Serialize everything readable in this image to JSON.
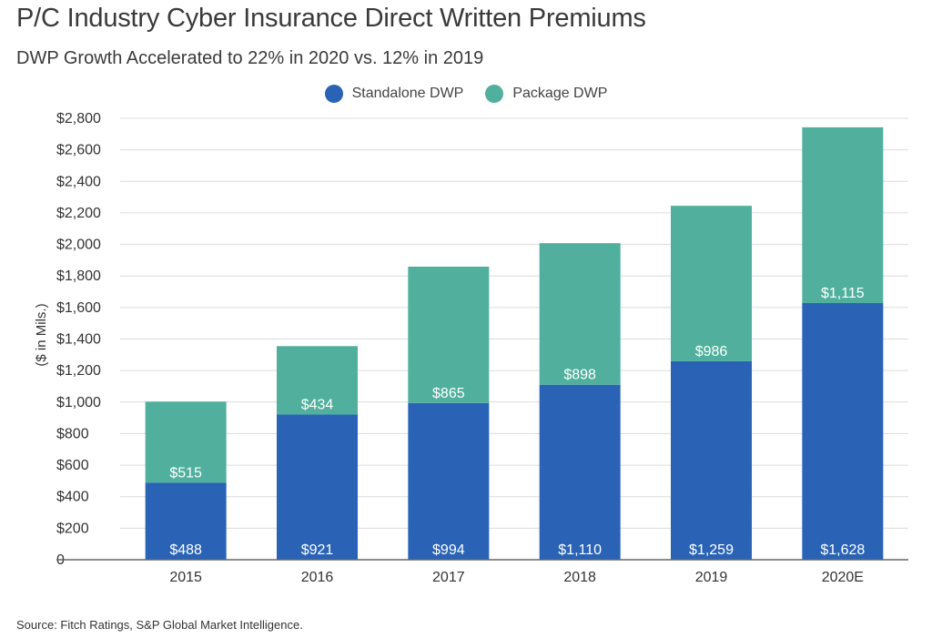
{
  "header": {
    "title": "P/C Industry Cyber Insurance Direct Written Premiums",
    "subtitle": "DWP Growth Accelerated to 22% in 2020 vs. 12% in 2019"
  },
  "footer": {
    "source": "Source: Fitch Ratings, S&P Global Market Intelligence."
  },
  "chart_data": {
    "type": "bar",
    "stacked": true,
    "title": "P/C Industry Cyber Insurance Direct Written Premiums",
    "subtitle": "DWP Growth Accelerated to 22% in 2020 vs. 12% in 2019",
    "xlabel": "",
    "ylabel": "($ in Mils.)",
    "categories": [
      "2015",
      "2016",
      "2017",
      "2018",
      "2019",
      "2020E"
    ],
    "series": [
      {
        "name": "Standalone DWP",
        "color": "#2a63b6",
        "values": [
          488,
          921,
          994,
          1110,
          1259,
          1628
        ],
        "labels": [
          "$488",
          "$921",
          "$994",
          "$1,110",
          "$1,259",
          "$1,628"
        ]
      },
      {
        "name": "Package DWP",
        "color": "#50b09d",
        "values": [
          515,
          434,
          865,
          898,
          986,
          1115
        ],
        "labels": [
          "$515",
          "$434",
          "$865",
          "$898",
          "$986",
          "$1,115"
        ]
      }
    ],
    "ylim": [
      0,
      2800
    ],
    "yticks": [
      0,
      200,
      400,
      600,
      800,
      1000,
      1200,
      1400,
      1600,
      1800,
      2000,
      2200,
      2400,
      2600,
      2800
    ],
    "ytick_labels": [
      "0",
      "$200",
      "$400",
      "$600",
      "$800",
      "$1,000",
      "$1,200",
      "$1,400",
      "$1,600",
      "$1,800",
      "$2,000",
      "$2,200",
      "$2,400",
      "$2,600",
      "$2,800"
    ],
    "grid": true,
    "legend_position": "top-center"
  }
}
